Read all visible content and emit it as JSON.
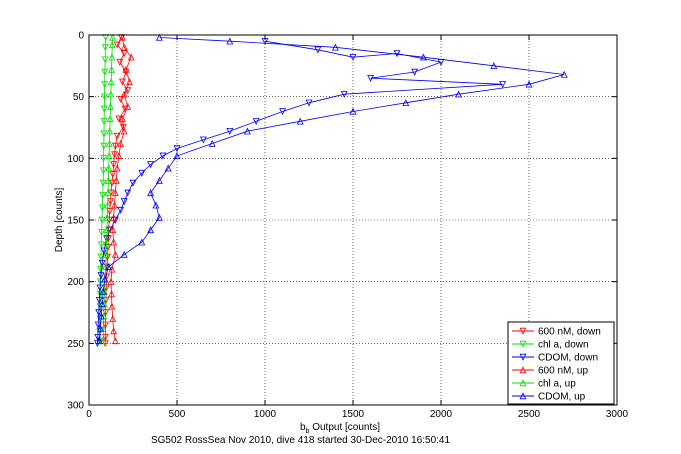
{
  "chart_data": {
    "type": "scatter",
    "xlabel_main": "b",
    "xlabel_sub": "b",
    "xlabel_rest": " Output [counts]",
    "ylabel": "Depth [counts]",
    "xlim": [
      0,
      3000
    ],
    "ylim": [
      0,
      300
    ],
    "y_reversed": true,
    "grid": true,
    "legend_position": "bottom-right",
    "x_ticks": [
      0,
      500,
      1000,
      1500,
      2000,
      2500,
      3000
    ],
    "y_ticks": [
      0,
      50,
      100,
      150,
      200,
      250,
      300
    ],
    "series": [
      {
        "name": "600 nM, down",
        "color": "#ff0000",
        "marker": "down",
        "line": true,
        "points": [
          [
            185,
            2
          ],
          [
            160,
            8
          ],
          [
            200,
            15
          ],
          [
            175,
            22
          ],
          [
            210,
            30
          ],
          [
            190,
            38
          ],
          [
            220,
            45
          ],
          [
            180,
            52
          ],
          [
            205,
            60
          ],
          [
            170,
            68
          ],
          [
            195,
            75
          ],
          [
            160,
            82
          ],
          [
            150,
            90
          ],
          [
            145,
            97
          ],
          [
            140,
            105
          ],
          [
            135,
            113
          ],
          [
            130,
            120
          ],
          [
            125,
            128
          ],
          [
            122,
            135
          ],
          [
            118,
            143
          ],
          [
            115,
            150
          ],
          [
            112,
            158
          ],
          [
            110,
            165
          ],
          [
            108,
            172
          ],
          [
            105,
            180
          ],
          [
            102,
            188
          ],
          [
            100,
            196
          ],
          [
            98,
            205
          ],
          [
            96,
            215
          ],
          [
            95,
            225
          ],
          [
            94,
            235
          ],
          [
            93,
            245
          ],
          [
            92,
            250
          ]
        ]
      },
      {
        "name": "chl a, down",
        "color": "#00dd00",
        "marker": "down",
        "line": true,
        "points": [
          [
            95,
            2
          ],
          [
            93,
            10
          ],
          [
            92,
            20
          ],
          [
            90,
            30
          ],
          [
            89,
            40
          ],
          [
            88,
            50
          ],
          [
            87,
            60
          ],
          [
            86,
            70
          ],
          [
            85,
            80
          ],
          [
            84,
            90
          ],
          [
            83,
            100
          ],
          [
            82,
            110
          ],
          [
            80,
            120
          ],
          [
            78,
            130
          ],
          [
            76,
            140
          ],
          [
            74,
            150
          ],
          [
            72,
            160
          ],
          [
            70,
            170
          ],
          [
            68,
            180
          ],
          [
            66,
            190
          ],
          [
            65,
            200
          ],
          [
            64,
            210
          ],
          [
            63,
            220
          ],
          [
            62,
            230
          ],
          [
            61,
            240
          ],
          [
            60,
            248
          ]
        ]
      },
      {
        "name": "CDOM, down",
        "color": "#0000ee",
        "marker": "down",
        "line": true,
        "points": [
          [
            1000,
            5
          ],
          [
            1300,
            12
          ],
          [
            1500,
            18
          ],
          [
            1750,
            15
          ],
          [
            2000,
            22
          ],
          [
            1850,
            30
          ],
          [
            1600,
            35
          ],
          [
            2350,
            40
          ],
          [
            1450,
            48
          ],
          [
            1250,
            55
          ],
          [
            1100,
            62
          ],
          [
            950,
            70
          ],
          [
            800,
            78
          ],
          [
            650,
            85
          ],
          [
            500,
            92
          ],
          [
            420,
            98
          ],
          [
            350,
            105
          ],
          [
            300,
            112
          ],
          [
            250,
            120
          ],
          [
            220,
            128
          ],
          [
            200,
            135
          ],
          [
            180,
            142
          ],
          [
            150,
            150
          ],
          [
            120,
            158
          ],
          [
            100,
            165
          ],
          [
            85,
            175
          ],
          [
            75,
            185
          ],
          [
            68,
            195
          ],
          [
            62,
            205
          ],
          [
            58,
            215
          ],
          [
            55,
            225
          ],
          [
            52,
            235
          ],
          [
            50,
            245
          ],
          [
            48,
            250
          ]
        ]
      },
      {
        "name": "600 nM, up",
        "color": "#ff0000",
        "marker": "up",
        "line": true,
        "points": [
          [
            150,
            248
          ],
          [
            140,
            240
          ],
          [
            135,
            230
          ],
          [
            130,
            220
          ],
          [
            128,
            210
          ],
          [
            125,
            200
          ],
          [
            130,
            190
          ],
          [
            150,
            178
          ],
          [
            140,
            168
          ],
          [
            135,
            158
          ],
          [
            140,
            148
          ],
          [
            145,
            138
          ],
          [
            150,
            128
          ],
          [
            155,
            118
          ],
          [
            160,
            108
          ],
          [
            170,
            98
          ],
          [
            180,
            88
          ],
          [
            200,
            78
          ],
          [
            190,
            68
          ],
          [
            220,
            58
          ],
          [
            200,
            48
          ],
          [
            230,
            38
          ],
          [
            210,
            28
          ],
          [
            240,
            18
          ],
          [
            200,
            10
          ],
          [
            190,
            2
          ]
        ]
      },
      {
        "name": "chl a, up",
        "color": "#00dd00",
        "marker": "up",
        "line": true,
        "points": [
          [
            80,
            248
          ],
          [
            82,
            238
          ],
          [
            84,
            228
          ],
          [
            86,
            218
          ],
          [
            88,
            208
          ],
          [
            92,
            198
          ],
          [
            95,
            188
          ],
          [
            98,
            178
          ],
          [
            100,
            168
          ],
          [
            102,
            158
          ],
          [
            104,
            148
          ],
          [
            106,
            138
          ],
          [
            108,
            128
          ],
          [
            110,
            118
          ],
          [
            112,
            108
          ],
          [
            114,
            98
          ],
          [
            116,
            88
          ],
          [
            118,
            78
          ],
          [
            120,
            68
          ],
          [
            122,
            58
          ],
          [
            124,
            48
          ],
          [
            126,
            38
          ],
          [
            128,
            28
          ],
          [
            130,
            18
          ],
          [
            132,
            8
          ],
          [
            134,
            2
          ]
        ]
      },
      {
        "name": "CDOM, up",
        "color": "#0000ee",
        "marker": "up",
        "line": true,
        "points": [
          [
            60,
            248
          ],
          [
            65,
            238
          ],
          [
            70,
            228
          ],
          [
            75,
            218
          ],
          [
            80,
            208
          ],
          [
            90,
            198
          ],
          [
            110,
            188
          ],
          [
            200,
            178
          ],
          [
            300,
            168
          ],
          [
            350,
            158
          ],
          [
            400,
            148
          ],
          [
            380,
            138
          ],
          [
            350,
            128
          ],
          [
            400,
            118
          ],
          [
            450,
            108
          ],
          [
            500,
            98
          ],
          [
            700,
            88
          ],
          [
            900,
            78
          ],
          [
            1200,
            70
          ],
          [
            1500,
            62
          ],
          [
            1800,
            55
          ],
          [
            2100,
            48
          ],
          [
            2500,
            40
          ],
          [
            2700,
            32
          ],
          [
            2300,
            25
          ],
          [
            1900,
            18
          ],
          [
            1400,
            10
          ],
          [
            800,
            5
          ],
          [
            400,
            2
          ]
        ]
      }
    ]
  },
  "caption": "SG502 RossSea Nov 2010, dive 418 started 30-Dec-2010 16:50:41"
}
